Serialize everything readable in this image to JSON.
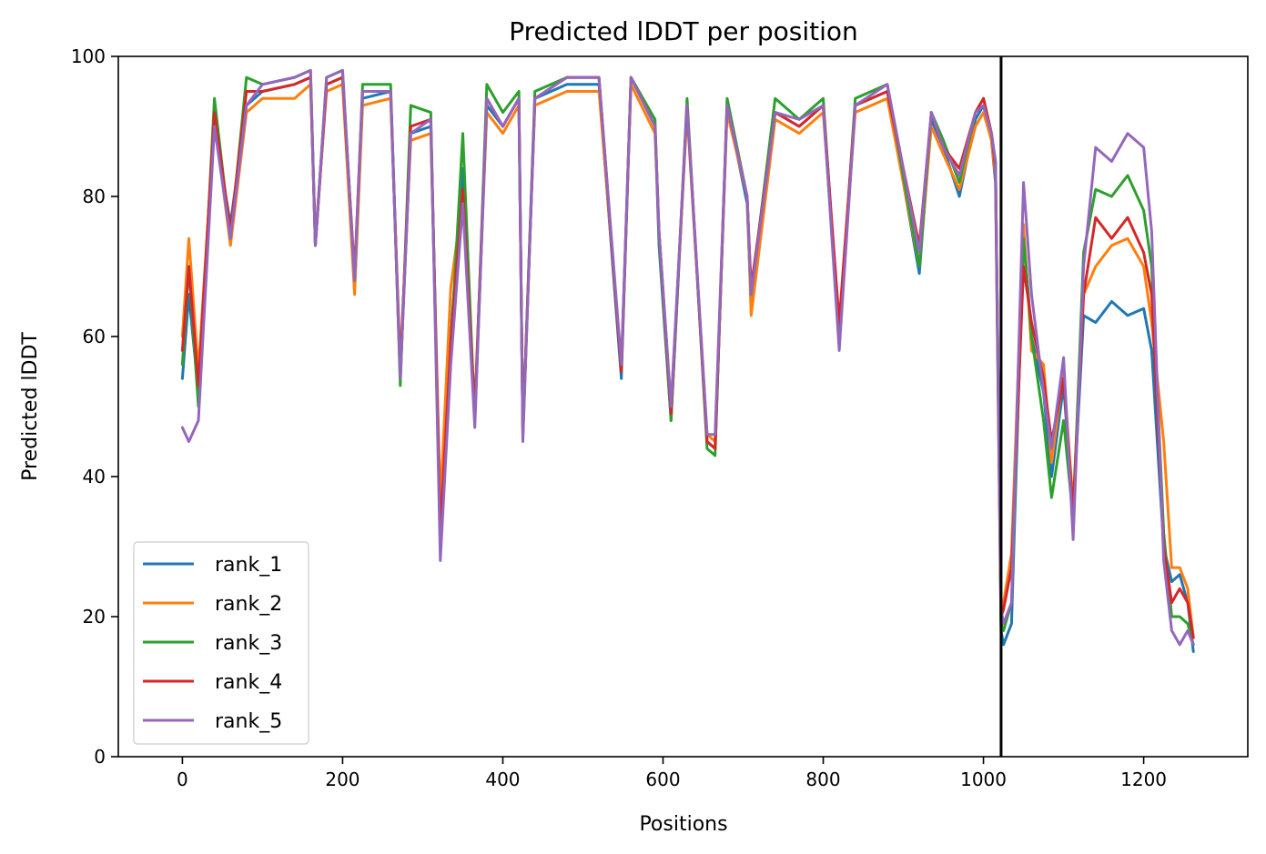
{
  "chart_data": {
    "type": "line",
    "title": "Predicted lDDT per position",
    "xlabel": "Positions",
    "ylabel": "Predicted lDDT",
    "xlim": [
      -80,
      1330
    ],
    "ylim": [
      0,
      100
    ],
    "xticks": [
      0,
      200,
      400,
      600,
      800,
      1000,
      1200
    ],
    "yticks": [
      0,
      20,
      40,
      60,
      80,
      100
    ],
    "grid": false,
    "legend": "lower-left",
    "vline": {
      "x": 1022,
      "color": "#000000"
    },
    "series": [
      {
        "name": "rank_1",
        "color": "#1f77b4",
        "x": [
          0,
          8,
          20,
          40,
          60,
          80,
          100,
          140,
          160,
          166,
          180,
          200,
          215,
          225,
          260,
          272,
          285,
          310,
          322,
          335,
          350,
          365,
          380,
          400,
          420,
          425,
          440,
          480,
          520,
          548,
          560,
          590,
          595,
          610,
          630,
          655,
          665,
          680,
          705,
          710,
          740,
          770,
          800,
          820,
          840,
          880,
          920,
          935,
          950,
          970,
          990,
          1000,
          1010,
          1015,
          1022,
          1025,
          1035,
          1050,
          1060,
          1075,
          1085,
          1100,
          1112,
          1125,
          1140,
          1160,
          1180,
          1200,
          1210,
          1225,
          1235,
          1245,
          1255,
          1262
        ],
        "y": [
          54,
          66,
          52,
          90,
          76,
          93,
          95,
          96,
          97,
          73,
          96,
          97,
          67,
          94,
          95,
          54,
          89,
          90,
          34,
          60,
          84,
          48,
          93,
          90,
          94,
          46,
          94,
          96,
          96,
          54,
          97,
          90,
          73,
          48,
          93,
          45,
          44,
          93,
          79,
          65,
          92,
          90,
          93,
          59,
          93,
          95,
          69,
          91,
          87,
          80,
          91,
          93,
          88,
          82,
          18,
          16,
          19,
          75,
          60,
          52,
          40,
          53,
          35,
          63,
          62,
          65,
          63,
          64,
          58,
          30,
          25,
          26,
          22,
          15
        ]
      },
      {
        "name": "rank_2",
        "color": "#ff7f0e",
        "x": [
          0,
          8,
          20,
          40,
          60,
          80,
          100,
          140,
          160,
          166,
          180,
          200,
          215,
          225,
          260,
          272,
          285,
          310,
          322,
          335,
          350,
          365,
          380,
          400,
          420,
          425,
          440,
          480,
          520,
          548,
          560,
          590,
          595,
          610,
          630,
          655,
          665,
          680,
          705,
          710,
          740,
          770,
          800,
          820,
          840,
          880,
          920,
          935,
          950,
          970,
          990,
          1000,
          1010,
          1015,
          1022,
          1025,
          1035,
          1050,
          1060,
          1075,
          1085,
          1100,
          1112,
          1125,
          1140,
          1160,
          1180,
          1200,
          1210,
          1225,
          1235,
          1245,
          1255,
          1262
        ],
        "y": [
          60,
          74,
          55,
          91,
          73,
          92,
          94,
          94,
          96,
          74,
          95,
          96,
          66,
          93,
          94,
          56,
          88,
          89,
          36,
          67,
          80,
          50,
          92,
          89,
          93,
          47,
          93,
          95,
          95,
          56,
          96,
          89,
          75,
          50,
          92,
          46,
          45,
          92,
          80,
          63,
          91,
          89,
          92,
          61,
          92,
          94,
          70,
          90,
          86,
          81,
          90,
          92,
          88,
          83,
          20,
          22,
          29,
          76,
          58,
          56,
          42,
          55,
          36,
          66,
          70,
          73,
          74,
          70,
          62,
          45,
          27,
          27,
          24,
          17
        ]
      },
      {
        "name": "rank_3",
        "color": "#2ca02c",
        "x": [
          0,
          8,
          20,
          40,
          60,
          80,
          100,
          140,
          160,
          166,
          180,
          200,
          215,
          225,
          260,
          272,
          285,
          310,
          322,
          335,
          350,
          365,
          380,
          400,
          420,
          425,
          440,
          480,
          520,
          548,
          560,
          590,
          595,
          610,
          630,
          655,
          665,
          680,
          705,
          710,
          740,
          770,
          800,
          820,
          840,
          880,
          920,
          935,
          950,
          970,
          990,
          1000,
          1010,
          1015,
          1022,
          1025,
          1035,
          1050,
          1060,
          1075,
          1085,
          1100,
          1112,
          1125,
          1140,
          1160,
          1180,
          1200,
          1210,
          1225,
          1235,
          1245,
          1255,
          1262
        ],
        "y": [
          56,
          70,
          50,
          94,
          74,
          97,
          96,
          97,
          98,
          73,
          97,
          98,
          68,
          96,
          96,
          53,
          93,
          92,
          30,
          58,
          89,
          48,
          96,
          92,
          95,
          46,
          95,
          97,
          97,
          55,
          97,
          91,
          74,
          48,
          94,
          44,
          43,
          94,
          80,
          66,
          94,
          91,
          94,
          60,
          94,
          96,
          70,
          92,
          88,
          82,
          92,
          94,
          89,
          85,
          19,
          18,
          22,
          74,
          60,
          48,
          37,
          48,
          34,
          72,
          81,
          80,
          83,
          78,
          70,
          32,
          20,
          20,
          19,
          16
        ]
      },
      {
        "name": "rank_4",
        "color": "#d62728",
        "x": [
          0,
          8,
          20,
          40,
          60,
          80,
          100,
          140,
          160,
          166,
          180,
          200,
          215,
          225,
          260,
          272,
          285,
          310,
          322,
          335,
          350,
          365,
          380,
          400,
          420,
          425,
          440,
          480,
          520,
          548,
          560,
          590,
          595,
          610,
          630,
          655,
          665,
          680,
          705,
          710,
          740,
          770,
          800,
          820,
          840,
          880,
          920,
          935,
          950,
          970,
          990,
          1000,
          1010,
          1015,
          1022,
          1025,
          1035,
          1050,
          1060,
          1075,
          1085,
          1100,
          1112,
          1125,
          1140,
          1160,
          1180,
          1200,
          1210,
          1225,
          1235,
          1245,
          1255,
          1262
        ],
        "y": [
          58,
          70,
          53,
          92,
          75,
          95,
          95,
          96,
          97,
          73,
          96,
          97,
          69,
          95,
          95,
          55,
          90,
          91,
          32,
          59,
          81,
          49,
          94,
          90,
          94,
          46,
          94,
          97,
          97,
          55,
          97,
          90,
          75,
          49,
          93,
          45,
          44,
          93,
          80,
          67,
          92,
          90,
          93,
          62,
          93,
          95,
          73,
          92,
          87,
          84,
          92,
          94,
          89,
          84,
          20,
          21,
          27,
          70,
          62,
          54,
          45,
          54,
          35,
          66,
          77,
          74,
          77,
          72,
          66,
          30,
          22,
          24,
          22,
          17
        ]
      },
      {
        "name": "rank_5",
        "color": "#9467bd",
        "x": [
          0,
          8,
          20,
          40,
          60,
          80,
          100,
          140,
          160,
          166,
          180,
          200,
          215,
          225,
          260,
          272,
          285,
          310,
          322,
          335,
          350,
          365,
          380,
          400,
          420,
          425,
          440,
          480,
          520,
          548,
          560,
          590,
          595,
          610,
          630,
          655,
          665,
          680,
          705,
          710,
          740,
          770,
          800,
          820,
          840,
          880,
          920,
          935,
          950,
          970,
          990,
          1000,
          1010,
          1015,
          1022,
          1025,
          1035,
          1050,
          1060,
          1075,
          1085,
          1100,
          1112,
          1125,
          1140,
          1160,
          1180,
          1200,
          1210,
          1225,
          1235,
          1245,
          1255,
          1262
        ],
        "y": [
          47,
          45,
          48,
          90,
          74,
          93,
          96,
          97,
          98,
          73,
          97,
          98,
          68,
          95,
          95,
          54,
          89,
          91,
          28,
          56,
          79,
          47,
          94,
          90,
          94,
          45,
          94,
          97,
          97,
          56,
          97,
          90,
          75,
          50,
          93,
          46,
          46,
          93,
          80,
          66,
          92,
          91,
          93,
          58,
          93,
          96,
          72,
          92,
          87,
          83,
          92,
          93,
          89,
          85,
          21,
          19,
          22,
          82,
          66,
          52,
          44,
          57,
          31,
          70,
          87,
          85,
          89,
          87,
          75,
          28,
          18,
          16,
          18,
          16
        ]
      }
    ]
  }
}
